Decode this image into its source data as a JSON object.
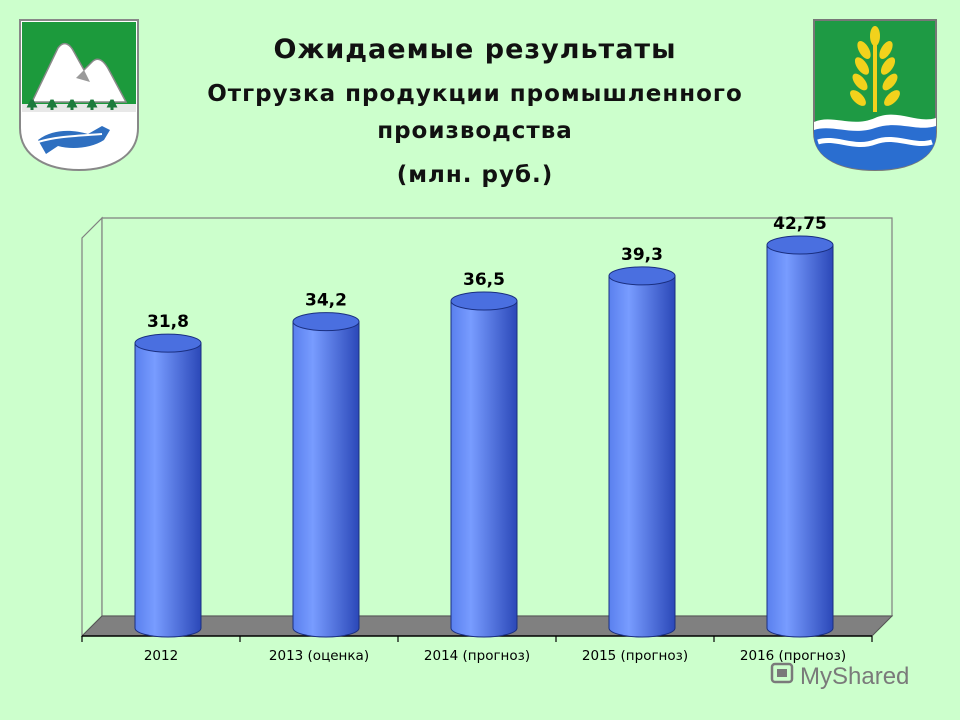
{
  "header": {
    "title": "Ожидаемые результаты",
    "subtitle": "Отгрузка продукции промышленного производства",
    "unit": "(млн. руб.)"
  },
  "left_emblem": {
    "name": "district-coat-of-arms-mountains-fox"
  },
  "right_emblem": {
    "name": "district-coat-of-arms-wheat-river"
  },
  "watermark": {
    "text": "MyShared"
  },
  "colors": {
    "background": "#ccffcc",
    "bar_light": "#6f96ff",
    "bar_dark": "#2b48b8",
    "floor": "#808080",
    "axis": "#000000"
  },
  "chart_data": {
    "type": "bar",
    "style": "3d-cylinder",
    "categories": [
      "2012",
      "2013 (оценка)",
      "2014 (прогноз)",
      "2015 (прогноз)",
      "2016 (прогноз)"
    ],
    "values": [
      31.8,
      34.2,
      36.5,
      39.3,
      42.75
    ],
    "data_labels": [
      "31,8",
      "34,2",
      "36,5",
      "39,3",
      "42,75"
    ],
    "title": "",
    "xlabel": "",
    "ylabel": "",
    "grid": false,
    "legend": "none"
  }
}
